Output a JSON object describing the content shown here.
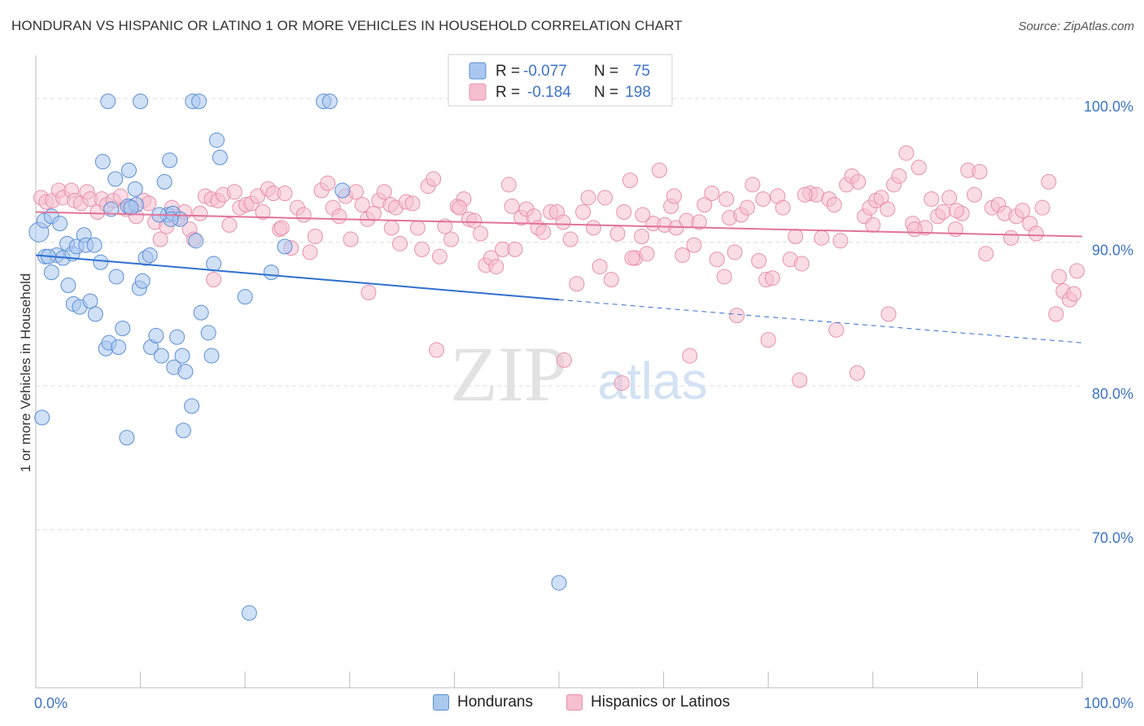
{
  "title": "HONDURAN VS HISPANIC OR LATINO 1 OR MORE VEHICLES IN HOUSEHOLD CORRELATION CHART",
  "source": "Source: ZipAtlas.com",
  "watermark": {
    "zip": "ZIP",
    "atlas": "atlas"
  },
  "colors": {
    "blue_fill": "#a9c7ef",
    "blue_stroke": "#5b8fd6",
    "blue_line": "#2f6fcf",
    "pink_fill": "#f6bfd0",
    "pink_stroke": "#e790ad",
    "pink_line": "#e0739a",
    "tick_text": "#3d73c9"
  },
  "legend": {
    "rows": [
      {
        "r_label": "R =",
        "r_value": "-0.077",
        "n_label": "N =",
        "n_value": "75"
      },
      {
        "r_label": "R =",
        "r_value": "-0.184",
        "n_label": "N =",
        "n_value": "198"
      }
    ]
  },
  "bottom_legend": {
    "items": [
      {
        "label": "Hondurans"
      },
      {
        "label": "Hispanics or Latinos"
      }
    ]
  },
  "chart_data": {
    "type": "scatter",
    "title": "HONDURAN VS HISPANIC OR LATINO 1 OR MORE VEHICLES IN HOUSEHOLD CORRELATION CHART",
    "xlabel": "",
    "ylabel": "1 or more Vehicles in Household",
    "xlim": [
      0,
      100
    ],
    "ylim": [
      59,
      103
    ],
    "x_ticks_labels": [
      "0.0%",
      "100.0%"
    ],
    "y_ticks": [
      70,
      80,
      90,
      100
    ],
    "y_tick_labels": [
      "70.0%",
      "80.0%",
      "90.0%",
      "100.0%"
    ],
    "grid": true,
    "series": [
      {
        "name": "Hondurans",
        "color": "#a9c7ef",
        "r": -0.077,
        "n": 75,
        "trend": {
          "x0": 0,
          "y0": 89.1,
          "x1": 50,
          "y1": 86.0,
          "dash_to_x": 100,
          "dash_to_y": 83.0
        },
        "points": [
          [
            0.3,
            90.7
          ],
          [
            0.8,
            91.5
          ],
          [
            1.5,
            91.8
          ],
          [
            2.3,
            91.3
          ],
          [
            0.6,
            77.8
          ],
          [
            0.9,
            89.0
          ],
          [
            1.5,
            87.9
          ],
          [
            2.0,
            89.1
          ],
          [
            2.6,
            88.9
          ],
          [
            3.0,
            89.9
          ],
          [
            3.5,
            89.2
          ],
          [
            3.9,
            89.7
          ],
          [
            4.6,
            90.5
          ],
          [
            4.8,
            89.8
          ],
          [
            3.1,
            87.0
          ],
          [
            3.6,
            85.7
          ],
          [
            4.2,
            85.5
          ],
          [
            5.6,
            89.8
          ],
          [
            5.2,
            85.9
          ],
          [
            5.7,
            85.0
          ],
          [
            6.2,
            88.6
          ],
          [
            6.4,
            95.6
          ],
          [
            6.7,
            82.6
          ],
          [
            7.0,
            83.0
          ],
          [
            7.6,
            94.4
          ],
          [
            7.7,
            87.6
          ],
          [
            7.9,
            82.7
          ],
          [
            8.3,
            84.0
          ],
          [
            8.9,
            95.0
          ],
          [
            8.8,
            92.5
          ],
          [
            9.5,
            93.7
          ],
          [
            9.6,
            92.6
          ],
          [
            9.9,
            86.8
          ],
          [
            10.2,
            87.3
          ],
          [
            10.5,
            88.9
          ],
          [
            10.9,
            89.1
          ],
          [
            11.0,
            82.7
          ],
          [
            11.5,
            83.5
          ],
          [
            12.0,
            82.1
          ],
          [
            12.3,
            94.2
          ],
          [
            12.6,
            91.9
          ],
          [
            12.8,
            95.7
          ],
          [
            13.1,
            92.0
          ],
          [
            13.2,
            81.3
          ],
          [
            13.5,
            83.4
          ],
          [
            13.8,
            91.6
          ],
          [
            14.0,
            82.1
          ],
          [
            14.1,
            76.9
          ],
          [
            14.3,
            81.0
          ],
          [
            14.9,
            78.6
          ],
          [
            15.3,
            90.1
          ],
          [
            15.8,
            85.1
          ],
          [
            16.5,
            83.7
          ],
          [
            16.8,
            82.1
          ],
          [
            17.0,
            88.5
          ],
          [
            17.3,
            97.1
          ],
          [
            17.6,
            95.9
          ],
          [
            20.0,
            86.2
          ],
          [
            20.4,
            64.2
          ],
          [
            22.5,
            87.9
          ],
          [
            23.8,
            89.7
          ],
          [
            6.9,
            99.8
          ],
          [
            8.7,
            76.4
          ],
          [
            15.0,
            99.8
          ],
          [
            15.6,
            99.8
          ],
          [
            27.5,
            99.8
          ],
          [
            28.1,
            99.8
          ],
          [
            29.3,
            93.6
          ],
          [
            10.0,
            99.8
          ],
          [
            7.2,
            92.3
          ],
          [
            9.1,
            92.4
          ],
          [
            12.9,
            91.6
          ],
          [
            50.0,
            66.3
          ],
          [
            1.2,
            89.0
          ],
          [
            11.8,
            91.9
          ]
        ]
      },
      {
        "name": "Hispanics or Latinos",
        "color": "#f6bfd0",
        "r": -0.184,
        "n": 198,
        "trend": {
          "x0": 0,
          "y0": 92.1,
          "x1": 100,
          "y1": 90.4
        },
        "points": [
          [
            0.5,
            93.1
          ],
          [
            1.0,
            92.8
          ],
          [
            1.6,
            92.9
          ],
          [
            2.2,
            93.6
          ],
          [
            2.6,
            93.1
          ],
          [
            3.4,
            93.6
          ],
          [
            3.7,
            92.9
          ],
          [
            4.3,
            92.7
          ],
          [
            4.9,
            93.5
          ],
          [
            5.2,
            93.0
          ],
          [
            5.9,
            92.1
          ],
          [
            6.3,
            93.0
          ],
          [
            6.8,
            92.6
          ],
          [
            7.4,
            92.9
          ],
          [
            8.1,
            93.2
          ],
          [
            8.6,
            92.3
          ],
          [
            9.0,
            92.5
          ],
          [
            9.6,
            91.8
          ],
          [
            10.3,
            92.9
          ],
          [
            10.8,
            92.7
          ],
          [
            11.4,
            91.4
          ],
          [
            11.9,
            90.2
          ],
          [
            12.5,
            91.1
          ],
          [
            13.0,
            92.4
          ],
          [
            13.6,
            91.7
          ],
          [
            14.2,
            92.1
          ],
          [
            14.7,
            90.9
          ],
          [
            15.1,
            90.2
          ],
          [
            15.7,
            92.0
          ],
          [
            16.2,
            93.2
          ],
          [
            16.8,
            93.0
          ],
          [
            17.4,
            92.9
          ],
          [
            17.9,
            93.3
          ],
          [
            18.5,
            91.2
          ],
          [
            19.0,
            93.5
          ],
          [
            19.5,
            92.4
          ],
          [
            20.1,
            92.6
          ],
          [
            20.6,
            92.7
          ],
          [
            21.2,
            93.2
          ],
          [
            21.7,
            92.1
          ],
          [
            22.2,
            93.7
          ],
          [
            22.7,
            93.4
          ],
          [
            23.3,
            90.9
          ],
          [
            23.8,
            93.4
          ],
          [
            24.4,
            89.6
          ],
          [
            25.0,
            92.4
          ],
          [
            25.6,
            91.9
          ],
          [
            26.2,
            89.3
          ],
          [
            26.7,
            90.4
          ],
          [
            27.3,
            93.6
          ],
          [
            27.9,
            94.1
          ],
          [
            28.4,
            92.4
          ],
          [
            29.0,
            91.8
          ],
          [
            29.6,
            93.2
          ],
          [
            30.1,
            90.2
          ],
          [
            30.6,
            93.5
          ],
          [
            31.2,
            92.6
          ],
          [
            31.7,
            91.6
          ],
          [
            32.3,
            92.0
          ],
          [
            32.8,
            92.9
          ],
          [
            33.3,
            93.5
          ],
          [
            33.9,
            92.6
          ],
          [
            34.4,
            92.4
          ],
          [
            34.8,
            89.9
          ],
          [
            35.4,
            92.8
          ],
          [
            36.0,
            92.7
          ],
          [
            36.5,
            91.0
          ],
          [
            36.9,
            89.5
          ],
          [
            37.5,
            93.9
          ],
          [
            38.0,
            94.4
          ],
          [
            38.6,
            89.0
          ],
          [
            39.1,
            91.1
          ],
          [
            39.7,
            90.2
          ],
          [
            40.3,
            92.5
          ],
          [
            40.9,
            93.0
          ],
          [
            41.4,
            91.6
          ],
          [
            41.9,
            91.5
          ],
          [
            42.5,
            90.6
          ],
          [
            43.0,
            88.4
          ],
          [
            43.5,
            88.9
          ],
          [
            44.0,
            88.3
          ],
          [
            44.6,
            89.5
          ],
          [
            45.2,
            94.0
          ],
          [
            45.8,
            89.5
          ],
          [
            46.4,
            91.7
          ],
          [
            46.9,
            92.3
          ],
          [
            47.6,
            91.8
          ],
          [
            48.0,
            91.0
          ],
          [
            48.5,
            90.7
          ],
          [
            49.2,
            92.1
          ],
          [
            49.8,
            92.1
          ],
          [
            50.4,
            91.4
          ],
          [
            51.1,
            90.2
          ],
          [
            51.7,
            87.1
          ],
          [
            52.3,
            92.1
          ],
          [
            52.8,
            93.1
          ],
          [
            53.3,
            91.0
          ],
          [
            53.9,
            88.3
          ],
          [
            54.4,
            93.1
          ],
          [
            55.0,
            87.4
          ],
          [
            55.6,
            90.6
          ],
          [
            56.2,
            92.1
          ],
          [
            56.8,
            94.3
          ],
          [
            57.3,
            88.9
          ],
          [
            57.9,
            90.4
          ],
          [
            58.4,
            89.2
          ],
          [
            59.0,
            91.3
          ],
          [
            59.6,
            95.0
          ],
          [
            60.1,
            91.2
          ],
          [
            60.7,
            92.5
          ],
          [
            61.2,
            91.0
          ],
          [
            61.8,
            89.1
          ],
          [
            62.2,
            91.5
          ],
          [
            62.9,
            89.8
          ],
          [
            63.4,
            91.4
          ],
          [
            63.9,
            92.6
          ],
          [
            64.6,
            93.4
          ],
          [
            65.1,
            88.8
          ],
          [
            65.8,
            87.6
          ],
          [
            66.3,
            91.7
          ],
          [
            66.8,
            89.3
          ],
          [
            67.4,
            91.9
          ],
          [
            68.0,
            92.4
          ],
          [
            68.5,
            94.0
          ],
          [
            69.1,
            88.7
          ],
          [
            69.8,
            87.4
          ],
          [
            70.4,
            87.5
          ],
          [
            70.9,
            93.2
          ],
          [
            71.4,
            92.4
          ],
          [
            72.1,
            88.8
          ],
          [
            72.6,
            90.4
          ],
          [
            73.2,
            88.5
          ],
          [
            74.0,
            93.4
          ],
          [
            74.6,
            93.3
          ],
          [
            75.1,
            90.3
          ],
          [
            75.8,
            93.0
          ],
          [
            76.3,
            92.6
          ],
          [
            76.9,
            90.1
          ],
          [
            77.5,
            94.0
          ],
          [
            78.0,
            94.6
          ],
          [
            78.6,
            94.2
          ],
          [
            79.2,
            91.8
          ],
          [
            79.7,
            92.4
          ],
          [
            80.3,
            92.9
          ],
          [
            80.8,
            93.1
          ],
          [
            81.4,
            92.3
          ],
          [
            82.0,
            94.0
          ],
          [
            82.5,
            94.6
          ],
          [
            83.2,
            96.2
          ],
          [
            83.8,
            91.3
          ],
          [
            84.4,
            95.2
          ],
          [
            85.0,
            91.0
          ],
          [
            85.6,
            93.0
          ],
          [
            86.2,
            91.8
          ],
          [
            86.7,
            92.1
          ],
          [
            87.3,
            93.1
          ],
          [
            87.9,
            90.9
          ],
          [
            88.5,
            92.0
          ],
          [
            89.1,
            95.0
          ],
          [
            89.7,
            93.3
          ],
          [
            90.2,
            94.9
          ],
          [
            90.8,
            89.2
          ],
          [
            91.4,
            92.4
          ],
          [
            92.0,
            92.6
          ],
          [
            92.6,
            92.0
          ],
          [
            93.2,
            90.3
          ],
          [
            93.7,
            91.8
          ],
          [
            94.3,
            92.2
          ],
          [
            95.0,
            91.3
          ],
          [
            95.6,
            90.6
          ],
          [
            96.2,
            92.4
          ],
          [
            96.8,
            94.2
          ],
          [
            97.5,
            85.0
          ],
          [
            97.8,
            87.6
          ],
          [
            98.2,
            86.6
          ],
          [
            98.8,
            86.0
          ],
          [
            99.2,
            86.4
          ],
          [
            99.5,
            88.0
          ],
          [
            23.5,
            91.0
          ],
          [
            40.5,
            92.4
          ],
          [
            45.5,
            92.5
          ],
          [
            58.0,
            91.9
          ],
          [
            61.0,
            93.2
          ],
          [
            66.0,
            93.0
          ],
          [
            69.5,
            93.0
          ],
          [
            73.5,
            93.3
          ],
          [
            80.0,
            91.2
          ],
          [
            84.0,
            90.9
          ],
          [
            88.0,
            92.2
          ],
          [
            38.3,
            82.5
          ],
          [
            31.8,
            86.5
          ],
          [
            34.0,
            91.0
          ],
          [
            50.5,
            81.8
          ],
          [
            56.0,
            80.2
          ],
          [
            62.5,
            82.1
          ],
          [
            67.0,
            84.9
          ],
          [
            70.0,
            83.2
          ],
          [
            73.0,
            80.4
          ],
          [
            76.5,
            83.9
          ],
          [
            78.5,
            80.9
          ],
          [
            81.5,
            85.0
          ],
          [
            57.0,
            88.9
          ],
          [
            17.0,
            87.4
          ]
        ]
      }
    ]
  }
}
